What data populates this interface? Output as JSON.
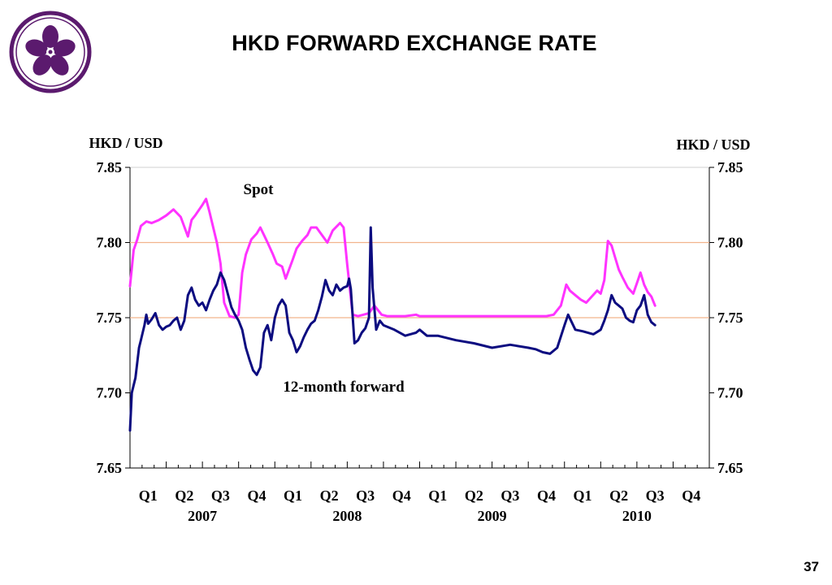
{
  "slide": {
    "title": "HKD FORWARD EXCHANGE RATE",
    "page_number": "37"
  },
  "logo": {
    "icon": "bauhinia-flower-icon",
    "color": "#5b1a6e"
  },
  "colors": {
    "spot": "#ff33ff",
    "forward": "#0c0c80",
    "reference_line": "#f2b48c",
    "frame": "#d0d0d0"
  },
  "chart_data": {
    "type": "line",
    "title": "HKD FORWARD EXCHANGE RATE",
    "ylabel_left": "HKD / USD",
    "ylabel_right": "HKD / USD",
    "ylim": [
      7.65,
      7.85
    ],
    "yticks": [
      "7.85",
      "7.80",
      "7.75",
      "7.70",
      "7.65"
    ],
    "y_tick_values": [
      7.85,
      7.8,
      7.75,
      7.7,
      7.65
    ],
    "reference_lines": [
      7.8,
      7.75
    ],
    "x_range_quarters": [
      0,
      16
    ],
    "quarter_labels": [
      "Q1",
      "Q2",
      "Q3",
      "Q4",
      "Q1",
      "Q2",
      "Q3",
      "Q4",
      "Q1",
      "Q2",
      "Q3",
      "Q4",
      "Q1",
      "Q2",
      "Q3",
      "Q4"
    ],
    "year_labels": [
      "2007",
      "2008",
      "2009",
      "2010"
    ],
    "annotations": {
      "spot": "Spot",
      "forward": "12-month forward"
    },
    "series": [
      {
        "key": "spot",
        "x": [
          0,
          0.1,
          0.2,
          0.3,
          0.45,
          0.6,
          0.8,
          1.0,
          1.2,
          1.4,
          1.6,
          1.7,
          1.8,
          2.0,
          2.1,
          2.2,
          2.4,
          2.5,
          2.6,
          2.75,
          2.9,
          3.0,
          3.1,
          3.2,
          3.35,
          3.5,
          3.6,
          3.7,
          3.8,
          3.95,
          4.05,
          4.2,
          4.3,
          4.5,
          4.6,
          4.75,
          4.9,
          5.0,
          5.15,
          5.3,
          5.45,
          5.6,
          5.8,
          5.9,
          6.0,
          6.15,
          6.3,
          6.45,
          6.6,
          6.75,
          6.85,
          6.95,
          7.1,
          7.3,
          7.6,
          7.9,
          8.0,
          8.15,
          8.3,
          8.5,
          9.0,
          9.2,
          9.4,
          10.0,
          10.5,
          11.0,
          11.5,
          11.7,
          11.9,
          12.05,
          12.15,
          12.3,
          12.45,
          12.6,
          12.75,
          12.9,
          13.0,
          13.1,
          13.2,
          13.3,
          13.4,
          13.5,
          13.6,
          13.75,
          13.9,
          14.0,
          14.1,
          14.2,
          14.3,
          14.4,
          14.5
        ],
        "y": [
          7.771,
          7.795,
          7.802,
          7.811,
          7.814,
          7.813,
          7.815,
          7.818,
          7.822,
          7.817,
          7.804,
          7.815,
          7.818,
          7.825,
          7.829,
          7.82,
          7.8,
          7.786,
          7.76,
          7.751,
          7.75,
          7.752,
          7.78,
          7.792,
          7.802,
          7.806,
          7.81,
          7.805,
          7.8,
          7.792,
          7.786,
          7.784,
          7.776,
          7.789,
          7.796,
          7.801,
          7.805,
          7.81,
          7.81,
          7.805,
          7.8,
          7.808,
          7.813,
          7.81,
          7.785,
          7.752,
          7.751,
          7.752,
          7.753,
          7.758,
          7.755,
          7.752,
          7.751,
          7.751,
          7.751,
          7.752,
          7.751,
          7.751,
          7.751,
          7.751,
          7.751,
          7.751,
          7.751,
          7.751,
          7.751,
          7.751,
          7.751,
          7.752,
          7.758,
          7.772,
          7.768,
          7.765,
          7.762,
          7.76,
          7.764,
          7.768,
          7.766,
          7.775,
          7.801,
          7.798,
          7.79,
          7.782,
          7.777,
          7.77,
          7.766,
          7.773,
          7.78,
          7.772,
          7.767,
          7.764,
          7.758
        ]
      },
      {
        "key": "forward",
        "x": [
          0,
          0.05,
          0.15,
          0.25,
          0.3,
          0.4,
          0.45,
          0.5,
          0.6,
          0.7,
          0.8,
          0.9,
          1.0,
          1.1,
          1.2,
          1.3,
          1.4,
          1.5,
          1.6,
          1.7,
          1.8,
          1.9,
          2.0,
          2.1,
          2.2,
          2.3,
          2.4,
          2.5,
          2.6,
          2.7,
          2.8,
          2.9,
          3.0,
          3.1,
          3.2,
          3.3,
          3.4,
          3.5,
          3.6,
          3.7,
          3.8,
          3.9,
          4.0,
          4.1,
          4.2,
          4.3,
          4.4,
          4.5,
          4.6,
          4.7,
          4.8,
          4.9,
          5.0,
          5.1,
          5.2,
          5.3,
          5.4,
          5.5,
          5.6,
          5.7,
          5.8,
          5.9,
          6.0,
          6.05,
          6.1,
          6.2,
          6.3,
          6.4,
          6.5,
          6.6,
          6.65,
          6.7,
          6.8,
          6.9,
          7.0,
          7.1,
          7.3,
          7.6,
          7.9,
          8.0,
          8.2,
          8.5,
          9.0,
          9.5,
          10.0,
          10.5,
          11.0,
          11.2,
          11.4,
          11.6,
          11.8,
          12.0,
          12.1,
          12.3,
          12.5,
          12.8,
          13.0,
          13.1,
          13.2,
          13.3,
          13.4,
          13.5,
          13.6,
          13.7,
          13.8,
          13.9,
          14.0,
          14.1,
          14.2,
          14.3,
          14.4,
          14.5
        ],
        "y": [
          7.675,
          7.7,
          7.71,
          7.73,
          7.735,
          7.745,
          7.752,
          7.746,
          7.749,
          7.753,
          7.745,
          7.742,
          7.744,
          7.745,
          7.748,
          7.75,
          7.742,
          7.748,
          7.765,
          7.77,
          7.762,
          7.758,
          7.76,
          7.755,
          7.762,
          7.768,
          7.772,
          7.78,
          7.775,
          7.766,
          7.757,
          7.752,
          7.748,
          7.742,
          7.73,
          7.722,
          7.715,
          7.712,
          7.717,
          7.74,
          7.745,
          7.735,
          7.75,
          7.758,
          7.762,
          7.758,
          7.74,
          7.735,
          7.727,
          7.731,
          7.737,
          7.742,
          7.746,
          7.748,
          7.755,
          7.764,
          7.775,
          7.768,
          7.765,
          7.772,
          7.768,
          7.77,
          7.771,
          7.776,
          7.769,
          7.733,
          7.735,
          7.74,
          7.743,
          7.75,
          7.81,
          7.77,
          7.742,
          7.748,
          7.745,
          7.744,
          7.742,
          7.738,
          7.74,
          7.742,
          7.738,
          7.738,
          7.735,
          7.733,
          7.73,
          7.732,
          7.73,
          7.729,
          7.727,
          7.726,
          7.73,
          7.745,
          7.752,
          7.742,
          7.741,
          7.739,
          7.742,
          7.748,
          7.755,
          7.765,
          7.76,
          7.758,
          7.756,
          7.75,
          7.748,
          7.747,
          7.755,
          7.758,
          7.765,
          7.752,
          7.747,
          7.745
        ]
      }
    ]
  }
}
